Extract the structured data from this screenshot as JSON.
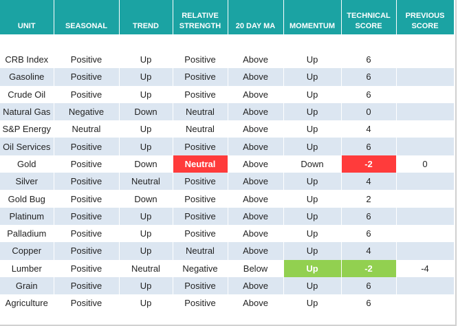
{
  "table": {
    "headers": [
      "UNIT",
      "SEASONAL",
      "TREND",
      "RELATIVE STRENGTH",
      "20 DAY MA",
      "MOMENTUM",
      "TECHNICAL SCORE",
      "PREVIOUS SCORE"
    ],
    "rows": [
      [
        "CRB Index",
        "Positive",
        "Up",
        "Positive",
        "Above",
        "Up",
        6
      ],
      [
        "Gasoline",
        "Positive",
        "Up",
        "Positive",
        "Above",
        "Up",
        6
      ],
      [
        "Crude Oil",
        "Positive",
        "Up",
        "Positive",
        "Above",
        "Up",
        6
      ],
      [
        "Natural Gas",
        "Negative",
        "Down",
        "Neutral",
        "Above",
        "Up",
        0
      ],
      [
        "S&P Energy",
        "Neutral",
        "Up",
        "Neutral",
        "Above",
        "Up",
        4
      ],
      [
        "Oil Services",
        "Positive",
        "Up",
        "Positive",
        "Above",
        "Up",
        6
      ],
      [
        "Gold",
        "Positive",
        "Down",
        "Neutral",
        "Above",
        "Down",
        -2,
        0
      ],
      [
        "Silver",
        "Positive",
        "Neutral",
        "Positive",
        "Above",
        "Up",
        4
      ],
      [
        "Gold Bug",
        "Positive",
        "Down",
        "Positive",
        "Above",
        "Up",
        2
      ],
      [
        "Platinum",
        "Positive",
        "Up",
        "Positive",
        "Above",
        "Up",
        6
      ],
      [
        "Palladium",
        "Positive",
        "Up",
        "Positive",
        "Above",
        "Up",
        6
      ],
      [
        "Copper",
        "Positive",
        "Up",
        "Neutral",
        "Above",
        "Up",
        4
      ],
      [
        "Lumber",
        "Positive",
        "Neutral",
        "Negative",
        "Below",
        "Up",
        -2,
        -4
      ],
      [
        "Grain",
        "Positive",
        "Up",
        "Positive",
        "Above",
        "Up",
        6
      ],
      [
        "Agriculture",
        "Positive",
        "Up",
        "Positive",
        "Above",
        "Up",
        6
      ]
    ],
    "header_color": "#1ba3a3",
    "stripe_color": "#dce6f1",
    "highlights": [
      {
        "cell": "6.3",
        "color": "#ff3b3b"
      },
      {
        "cell": "6.6",
        "color": "#ff3b3b"
      },
      {
        "cell": "12.5",
        "color": "#92d050"
      },
      {
        "cell": "12.6",
        "color": "#92d050"
      }
    ]
  }
}
